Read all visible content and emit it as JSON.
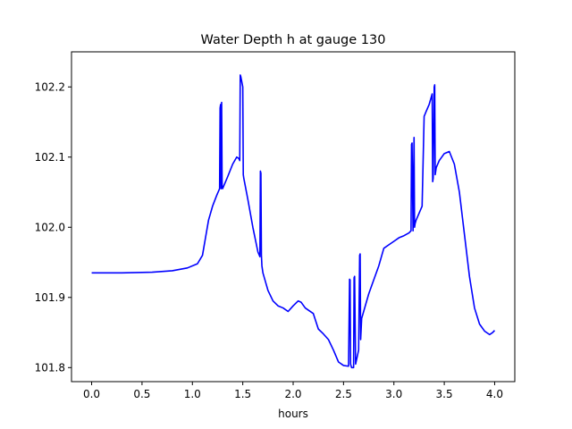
{
  "chart_data": {
    "type": "line",
    "title": "Water Depth h at gauge 130",
    "xlabel": "hours",
    "ylabel": "",
    "xlim": [
      -0.2,
      4.2
    ],
    "ylim": [
      101.78,
      102.25
    ],
    "xticks": [
      0.0,
      0.5,
      1.0,
      1.5,
      2.0,
      2.5,
      3.0,
      3.5,
      4.0
    ],
    "xtick_labels": [
      "0.0",
      "0.5",
      "1.0",
      "1.5",
      "2.0",
      "2.5",
      "3.0",
      "3.5",
      "4.0"
    ],
    "yticks": [
      101.8,
      101.9,
      102.0,
      102.1,
      102.2
    ],
    "ytick_labels": [
      "101.8",
      "101.9",
      "102.0",
      "102.1",
      "102.2"
    ],
    "grid": false,
    "series": [
      {
        "color": "#0000ff",
        "x": [
          0.0,
          0.3,
          0.6,
          0.8,
          0.95,
          1.05,
          1.1,
          1.13,
          1.16,
          1.2,
          1.24,
          1.27,
          1.275,
          1.28,
          1.285,
          1.29,
          1.295,
          1.3,
          1.35,
          1.4,
          1.44,
          1.46,
          1.47,
          1.475,
          1.48,
          1.5,
          1.505,
          1.51,
          1.55,
          1.6,
          1.65,
          1.67,
          1.675,
          1.68,
          1.685,
          1.69,
          1.7,
          1.75,
          1.8,
          1.85,
          1.9,
          1.95,
          2.0,
          2.05,
          2.08,
          2.12,
          2.15,
          2.2,
          2.25,
          2.3,
          2.35,
          2.4,
          2.45,
          2.5,
          2.55,
          2.56,
          2.565,
          2.57,
          2.58,
          2.6,
          2.605,
          2.61,
          2.62,
          2.65,
          2.66,
          2.665,
          2.67,
          2.68,
          2.75,
          2.8,
          2.85,
          2.9,
          2.95,
          3.0,
          3.05,
          3.1,
          3.15,
          3.17,
          3.175,
          3.18,
          3.19,
          3.2,
          3.205,
          3.21,
          3.22,
          3.25,
          3.28,
          3.3,
          3.32,
          3.35,
          3.37,
          3.38,
          3.385,
          3.39,
          3.4,
          3.405,
          3.41,
          3.42,
          3.45,
          3.5,
          3.55,
          3.6,
          3.65,
          3.7,
          3.75,
          3.8,
          3.85,
          3.9,
          3.95,
          3.98,
          4.0
        ],
        "y": [
          101.935,
          101.935,
          101.936,
          101.938,
          101.942,
          101.948,
          101.96,
          101.985,
          102.01,
          102.03,
          102.045,
          102.055,
          102.17,
          102.175,
          102.055,
          102.178,
          102.06,
          102.055,
          102.072,
          102.09,
          102.1,
          102.098,
          102.095,
          102.217,
          102.215,
          102.2,
          102.075,
          102.07,
          102.04,
          102.0,
          101.965,
          101.958,
          102.08,
          102.077,
          101.96,
          101.945,
          101.935,
          101.91,
          101.895,
          101.888,
          101.885,
          101.88,
          101.888,
          101.895,
          101.893,
          101.885,
          101.882,
          101.877,
          101.855,
          101.848,
          101.84,
          101.825,
          101.808,
          101.803,
          101.802,
          101.926,
          101.925,
          101.805,
          101.8,
          101.8,
          101.928,
          101.93,
          101.805,
          101.825,
          101.96,
          101.962,
          101.84,
          101.87,
          101.905,
          101.925,
          101.945,
          101.97,
          101.975,
          101.98,
          101.985,
          101.988,
          101.992,
          101.995,
          102.118,
          102.12,
          101.995,
          102.128,
          102.0,
          102.005,
          102.01,
          102.02,
          102.03,
          102.158,
          102.165,
          102.175,
          102.185,
          102.19,
          102.065,
          102.07,
          102.2,
          102.203,
          102.075,
          102.085,
          102.095,
          102.105,
          102.108,
          102.09,
          102.05,
          101.99,
          101.93,
          101.885,
          101.862,
          101.852,
          101.847,
          101.85,
          101.853
        ]
      }
    ]
  }
}
